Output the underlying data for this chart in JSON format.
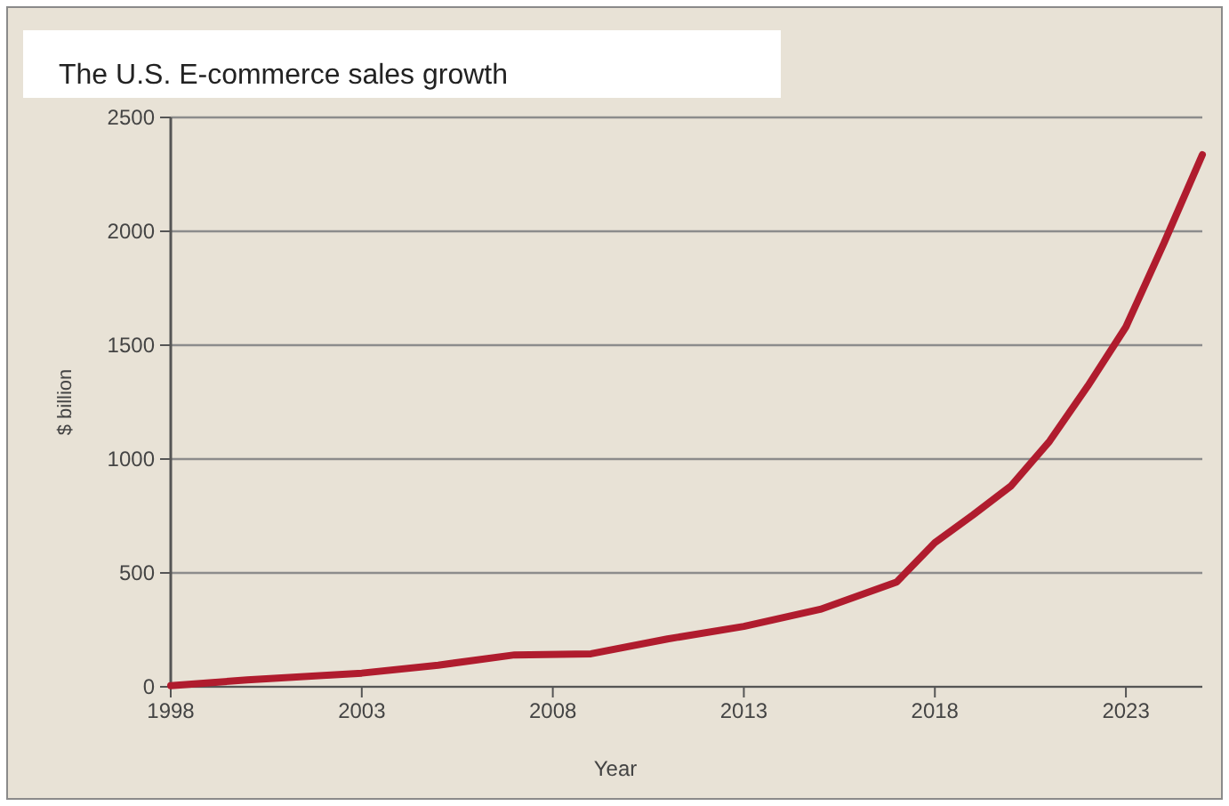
{
  "chart_data": {
    "type": "line",
    "title": "The U.S. E-commerce sales growth",
    "xlabel": "Year",
    "ylabel": "$ billion",
    "x": [
      1998,
      2000,
      2003,
      2005,
      2007,
      2009,
      2011,
      2013,
      2015,
      2017,
      2018,
      2019,
      2020,
      2021,
      2022,
      2023,
      2024,
      2025
    ],
    "series": [
      {
        "color": "#b01c2e",
        "values": [
          5,
          30,
          60,
          95,
          140,
          145,
          210,
          265,
          340,
          460,
          633,
          755,
          883,
          1078,
          1320,
          1580,
          1950,
          2336
        ]
      }
    ],
    "xlim": [
      1998,
      2025
    ],
    "xticks": [
      1998,
      2003,
      2008,
      2013,
      2018,
      2023
    ],
    "ylim": [
      0,
      2500
    ],
    "yticks": [
      0,
      500,
      1000,
      1500,
      2000,
      2500
    ],
    "grid": "y"
  }
}
